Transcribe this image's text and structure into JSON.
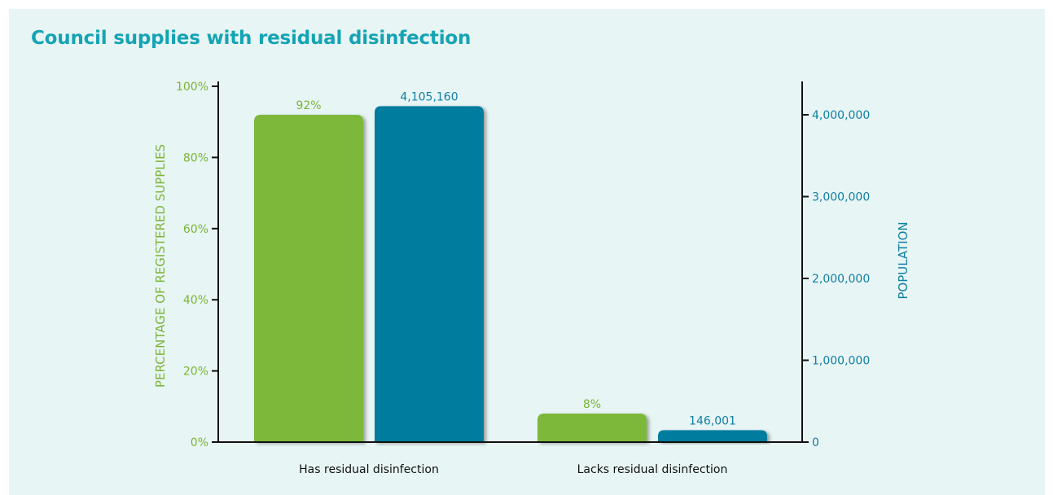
{
  "title": "Council supplies with residual disinfection",
  "colors": {
    "title": "#14a4b4",
    "percent_series": "#7db83a",
    "population_series": "#007d9e",
    "background": "#e8f5f5"
  },
  "chart_data": {
    "type": "bar",
    "categories": [
      "Has residual disinfection",
      "Lacks residual disinfection"
    ],
    "series": [
      {
        "axis": "left",
        "values": [
          92,
          8
        ],
        "labels": [
          "92%",
          "8%"
        ]
      },
      {
        "axis": "right",
        "values": [
          4105160,
          146001
        ],
        "labels": [
          "4,105,160",
          "146,001"
        ]
      }
    ],
    "ylabel": "PERCENTAGE OF REGISTERED SUPPLIES",
    "ylim": [
      0,
      100
    ],
    "yticks": [
      "0%",
      "20%",
      "40%",
      "60%",
      "80%",
      "100%"
    ],
    "y2label": "POPULATION",
    "y2lim": [
      0,
      4300000
    ],
    "y2ticks": [
      "0",
      "1,000,000",
      "2,000,000",
      "3,000,000",
      "4,000,000"
    ],
    "grid": false,
    "legend": "none"
  }
}
